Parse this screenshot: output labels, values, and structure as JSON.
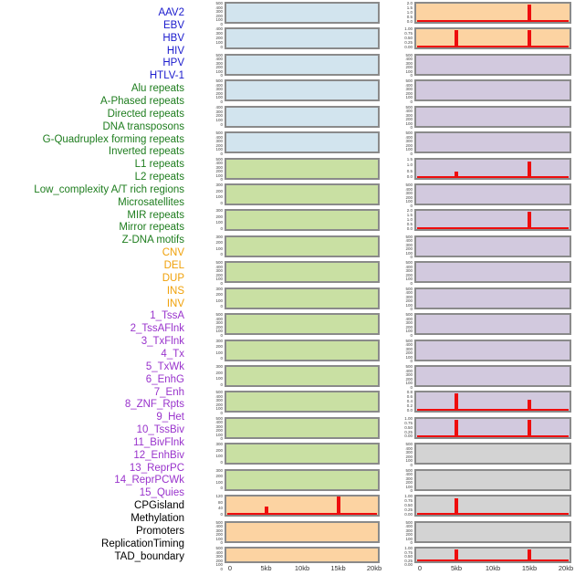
{
  "colors": {
    "label_virus": "#1a1acd",
    "label_repeat": "#1e7d1e",
    "label_sv": "#f0a10a",
    "label_state": "#9933cc",
    "label_other": "#000000",
    "panel_blue": "#d2e4ee",
    "panel_green": "#c9e0a3",
    "panel_orange": "#fcd3a2",
    "panel_purple": "#d2c9de",
    "panel_gray": "#d3d3d3",
    "panel_border": "#8a8a8a",
    "spike_red": "#ee0d0d",
    "axis_text": "#333333",
    "tick_text": "#444444"
  },
  "chart_data": {
    "type": "bar",
    "layout": "small-multiples, 2 columns of 22 mini-panels, track name list at left, column-major order",
    "x_range_kb": [
      0,
      20
    ],
    "x_ticks": [
      "0",
      "5kb",
      "10kb",
      "15kb",
      "20kb"
    ],
    "note": "red vertical bars mark feature peaks at ~5kb and ~15kb; bar height is fraction of panel max; thin red baseline along panel bottom where data present",
    "tracks": [
      {
        "name": "AAV2",
        "group": "virus",
        "panel": "blue",
        "yticks": [
          "500",
          "400",
          "300",
          "200",
          "100",
          "0"
        ],
        "spikes": [],
        "baseline": false
      },
      {
        "name": "EBV",
        "group": "virus",
        "panel": "blue",
        "yticks": [
          "400",
          "300",
          "200",
          "100",
          "0"
        ],
        "spikes": [],
        "baseline": false
      },
      {
        "name": "HBV",
        "group": "virus",
        "panel": "blue",
        "yticks": [
          "500",
          "400",
          "300",
          "200",
          "100",
          "0"
        ],
        "spikes": [],
        "baseline": false
      },
      {
        "name": "HIV",
        "group": "virus",
        "panel": "blue",
        "yticks": [
          "500",
          "400",
          "300",
          "200",
          "100",
          "0"
        ],
        "spikes": [],
        "baseline": false
      },
      {
        "name": "HPV",
        "group": "virus",
        "panel": "blue",
        "yticks": [
          "400",
          "300",
          "200",
          "100",
          "0"
        ],
        "spikes": [],
        "baseline": false
      },
      {
        "name": "HTLV-1",
        "group": "virus",
        "panel": "blue",
        "yticks": [
          "500",
          "400",
          "300",
          "200",
          "100",
          "0"
        ],
        "spikes": [],
        "baseline": false
      },
      {
        "name": "Alu repeats",
        "group": "repeat",
        "panel": "green",
        "yticks": [
          "500",
          "400",
          "300",
          "200",
          "100",
          "0"
        ],
        "spikes": [],
        "baseline": false
      },
      {
        "name": "A-Phased repeats",
        "group": "repeat",
        "panel": "green",
        "yticks": [
          "300",
          "200",
          "100",
          "0"
        ],
        "spikes": [],
        "baseline": false
      },
      {
        "name": "Directed repeats",
        "group": "repeat",
        "panel": "green",
        "yticks": [
          "300",
          "200",
          "100",
          "0"
        ],
        "spikes": [],
        "baseline": false
      },
      {
        "name": "DNA transposons",
        "group": "repeat",
        "panel": "green",
        "yticks": [
          "300",
          "200",
          "100",
          "0"
        ],
        "spikes": [],
        "baseline": false
      },
      {
        "name": "G-Quadruplex forming repeats",
        "group": "repeat",
        "panel": "green",
        "yticks": [
          "500",
          "400",
          "300",
          "200",
          "100",
          "0"
        ],
        "spikes": [],
        "baseline": false
      },
      {
        "name": "Inverted repeats",
        "group": "repeat",
        "panel": "green",
        "yticks": [
          "300",
          "200",
          "100",
          "0"
        ],
        "spikes": [],
        "baseline": false
      },
      {
        "name": "L1 repeats",
        "group": "repeat",
        "panel": "green",
        "yticks": [
          "500",
          "400",
          "300",
          "200",
          "100",
          "0"
        ],
        "spikes": [],
        "baseline": false
      },
      {
        "name": "L2 repeats",
        "group": "repeat",
        "panel": "green",
        "yticks": [
          "300",
          "200",
          "100",
          "0"
        ],
        "spikes": [],
        "baseline": false
      },
      {
        "name": "Low_complexity A/T rich regions",
        "group": "repeat",
        "panel": "green",
        "yticks": [
          "300",
          "200",
          "100",
          "0"
        ],
        "spikes": [],
        "baseline": false
      },
      {
        "name": "Microsatellites",
        "group": "repeat",
        "panel": "green",
        "yticks": [
          "500",
          "400",
          "300",
          "200",
          "100",
          "0"
        ],
        "spikes": [],
        "baseline": false
      },
      {
        "name": "MIR repeats",
        "group": "repeat",
        "panel": "green",
        "yticks": [
          "500",
          "400",
          "300",
          "200",
          "100",
          "0"
        ],
        "spikes": [],
        "baseline": false
      },
      {
        "name": "Mirror repeats",
        "group": "repeat",
        "panel": "green",
        "yticks": [
          "300",
          "200",
          "100",
          "0"
        ],
        "spikes": [],
        "baseline": false
      },
      {
        "name": "Z-DNA motifs",
        "group": "repeat",
        "panel": "green",
        "yticks": [
          "300",
          "200",
          "100",
          "0"
        ],
        "spikes": [],
        "baseline": false
      },
      {
        "name": "CNV",
        "group": "sv",
        "panel": "orange",
        "yticks": [
          "120",
          "80",
          "40",
          "0"
        ],
        "spikes": [
          {
            "kb": 5,
            "h": 0.45
          },
          {
            "kb": 15,
            "h": 1.0
          }
        ],
        "baseline": true
      },
      {
        "name": "DEL",
        "group": "sv",
        "panel": "orange",
        "yticks": [
          "500",
          "400",
          "300",
          "200",
          "100",
          "0"
        ],
        "spikes": [],
        "baseline": false
      },
      {
        "name": "DUP",
        "group": "sv",
        "panel": "orange",
        "yticks": [
          "500",
          "400",
          "300",
          "200",
          "100",
          "0"
        ],
        "spikes": [],
        "baseline": false
      },
      {
        "name": "INS",
        "group": "sv",
        "panel": "orange",
        "yticks": [
          "2.0",
          "1.5",
          "1.0",
          "0.5",
          "0.0"
        ],
        "spikes": [
          {
            "kb": 15,
            "h": 0.95
          }
        ],
        "baseline": true
      },
      {
        "name": "INV",
        "group": "sv",
        "panel": "orange",
        "yticks": [
          "1.00",
          "0.75",
          "0.50",
          "0.25",
          "0.00"
        ],
        "spikes": [
          {
            "kb": 5,
            "h": 0.96
          },
          {
            "kb": 15,
            "h": 0.96
          }
        ],
        "baseline": true
      },
      {
        "name": "1_TssA",
        "group": "state",
        "panel": "purple",
        "yticks": [
          "500",
          "400",
          "300",
          "200",
          "100",
          "0"
        ],
        "spikes": [],
        "baseline": false
      },
      {
        "name": "2_TssAFlnk",
        "group": "state",
        "panel": "purple",
        "yticks": [
          "500",
          "400",
          "300",
          "200",
          "100",
          "0"
        ],
        "spikes": [],
        "baseline": false
      },
      {
        "name": "3_TxFlnk",
        "group": "state",
        "panel": "purple",
        "yticks": [
          "500",
          "400",
          "300",
          "200",
          "100",
          "0"
        ],
        "spikes": [],
        "baseline": false
      },
      {
        "name": "4_Tx",
        "group": "state",
        "panel": "purple",
        "yticks": [
          "500",
          "400",
          "300",
          "200",
          "100",
          "0"
        ],
        "spikes": [],
        "baseline": false
      },
      {
        "name": "5_TxWk",
        "group": "state",
        "panel": "purple",
        "yticks": [
          "1.5",
          "1.0",
          "0.5",
          "0.0"
        ],
        "spikes": [
          {
            "kb": 5,
            "h": 0.33
          },
          {
            "kb": 15,
            "h": 0.88
          }
        ],
        "baseline": true
      },
      {
        "name": "6_EnhG",
        "group": "state",
        "panel": "purple",
        "yticks": [
          "500",
          "400",
          "300",
          "200",
          "100",
          "0"
        ],
        "spikes": [],
        "baseline": false
      },
      {
        "name": "7_Enh",
        "group": "state",
        "panel": "purple",
        "yticks": [
          "2.0",
          "1.5",
          "1.0",
          "0.5",
          "0.0"
        ],
        "spikes": [
          {
            "kb": 15,
            "h": 0.96
          }
        ],
        "baseline": true
      },
      {
        "name": "8_ZNF_Rpts",
        "group": "state",
        "panel": "purple",
        "yticks": [
          "500",
          "400",
          "300",
          "200",
          "100",
          "0"
        ],
        "spikes": [],
        "baseline": false
      },
      {
        "name": "9_Het",
        "group": "state",
        "panel": "purple",
        "yticks": [
          "500",
          "400",
          "300",
          "200",
          "100",
          "0"
        ],
        "spikes": [],
        "baseline": false
      },
      {
        "name": "10_TssBiv",
        "group": "state",
        "panel": "purple",
        "yticks": [
          "500",
          "400",
          "300",
          "200",
          "100",
          "0"
        ],
        "spikes": [],
        "baseline": false
      },
      {
        "name": "11_BivFlnk",
        "group": "state",
        "panel": "purple",
        "yticks": [
          "500",
          "400",
          "300",
          "200",
          "100",
          "0"
        ],
        "spikes": [],
        "baseline": false
      },
      {
        "name": "12_EnhBiv",
        "group": "state",
        "panel": "purple",
        "yticks": [
          "500",
          "400",
          "300",
          "200",
          "100",
          "0"
        ],
        "spikes": [],
        "baseline": false
      },
      {
        "name": "13_ReprPC",
        "group": "state",
        "panel": "purple",
        "yticks": [
          "500",
          "400",
          "300",
          "200",
          "100",
          "0"
        ],
        "spikes": [],
        "baseline": false
      },
      {
        "name": "14_ReprPCWk",
        "group": "state",
        "panel": "purple",
        "yticks": [
          "0.8",
          "0.6",
          "0.4",
          "0.2",
          "0.0"
        ],
        "spikes": [
          {
            "kb": 5,
            "h": 0.96
          },
          {
            "kb": 15,
            "h": 0.62
          }
        ],
        "baseline": true
      },
      {
        "name": "15_Quies",
        "group": "state",
        "panel": "purple",
        "yticks": [
          "1.00",
          "0.75",
          "0.50",
          "0.25",
          "0.00"
        ],
        "spikes": [
          {
            "kb": 5,
            "h": 0.96
          },
          {
            "kb": 15,
            "h": 0.92
          }
        ],
        "baseline": true
      },
      {
        "name": "CPGisland",
        "group": "other",
        "panel": "gray",
        "yticks": [
          "500",
          "400",
          "300",
          "200",
          "100",
          "0"
        ],
        "spikes": [],
        "baseline": false
      },
      {
        "name": "Methylation",
        "group": "other",
        "panel": "gray",
        "yticks": [
          "500",
          "400",
          "300",
          "200",
          "100",
          "0"
        ],
        "spikes": [],
        "baseline": false
      },
      {
        "name": "Promoters",
        "group": "other",
        "panel": "gray",
        "yticks": [
          "1.00",
          "0.75",
          "0.50",
          "0.25",
          "0.00"
        ],
        "spikes": [
          {
            "kb": 5,
            "h": 0.9
          }
        ],
        "baseline": true
      },
      {
        "name": "ReplicationTiming",
        "group": "other",
        "panel": "gray",
        "yticks": [
          "500",
          "400",
          "300",
          "200",
          "100",
          "0"
        ],
        "spikes": [],
        "baseline": false
      },
      {
        "name": "TAD_boundary",
        "group": "other",
        "panel": "gray",
        "yticks": [
          "1.00",
          "0.75",
          "0.50",
          "0.25",
          "0.00"
        ],
        "spikes": [
          {
            "kb": 5,
            "h": 0.95
          },
          {
            "kb": 15,
            "h": 0.9
          }
        ],
        "baseline": true
      }
    ]
  }
}
